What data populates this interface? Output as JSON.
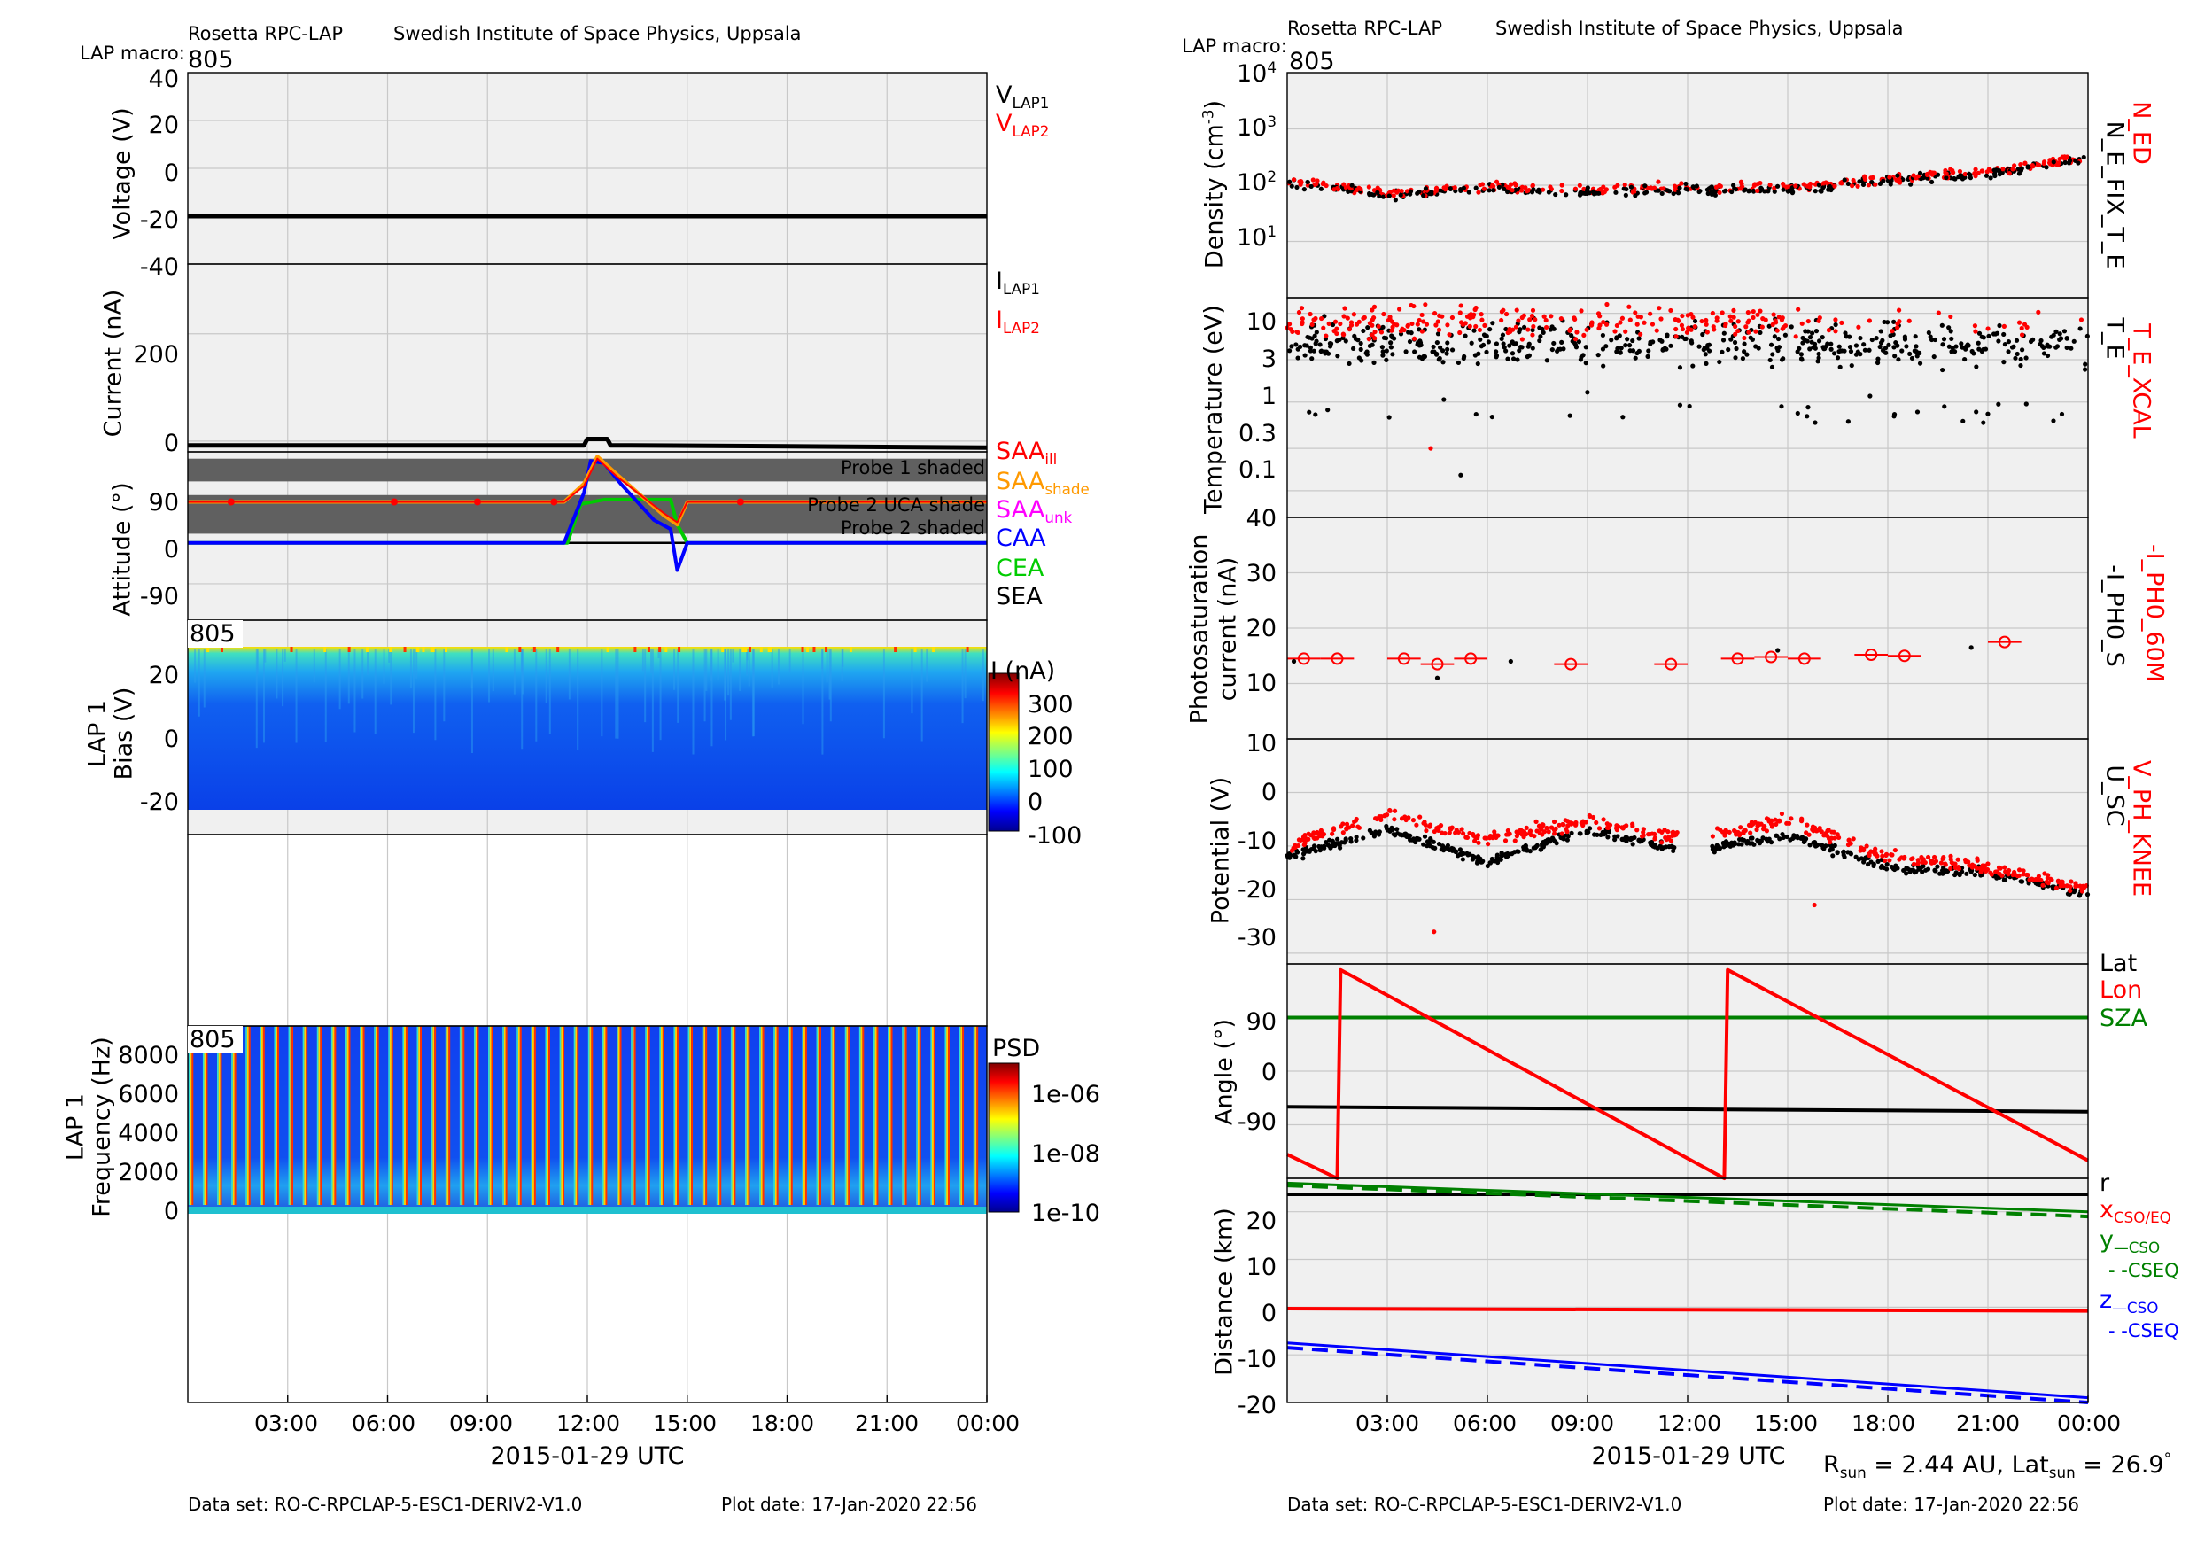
{
  "left": {
    "header": {
      "instrument": "Rosetta RPC-LAP",
      "institute": "Swedish Institute of Space Physics, Uppsala",
      "macro_label": "LAP macro:",
      "macro": "805"
    },
    "footer": {
      "dataset": "Data set: RO-C-RPCLAP-5-ESC1-DERIV2-V1.0",
      "plot_date": "Plot date: 17-Jan-2020 22:56"
    },
    "xlabel": "2015-01-29 UTC",
    "xticks": [
      "03:00",
      "06:00",
      "09:00",
      "12:00",
      "15:00",
      "18:00",
      "21:00",
      "00:00"
    ],
    "voltage": {
      "ylabel": "Voltage (V)",
      "yticks": [
        "40",
        "20",
        "0",
        "-20",
        "-40"
      ],
      "legend": [
        {
          "text": "V",
          "sub": "LAP1"
        },
        {
          "text": "V",
          "sub": "LAP2"
        }
      ]
    },
    "current": {
      "ylabel": "Current (nA)",
      "yticks": [
        "200",
        "0"
      ],
      "legend": [
        {
          "text": "I",
          "sub": "LAP1"
        },
        {
          "text": "I",
          "sub": "LAP2"
        }
      ]
    },
    "attitude": {
      "ylabel": "Attitude (°)",
      "yticks": [
        "90",
        "0",
        "-90"
      ],
      "bands": [
        "Probe 1 shaded",
        "Probe 2 UCA shade",
        "Probe 2 shaded"
      ],
      "legend": [
        {
          "text": "SAA",
          "sub": "ill"
        },
        {
          "text": "SAA",
          "sub": "shade"
        },
        {
          "text": "SAA",
          "sub": "unk"
        },
        {
          "text": "CAA",
          "sub": ""
        },
        {
          "text": "CEA",
          "sub": ""
        },
        {
          "text": "SEA",
          "sub": ""
        }
      ]
    },
    "bias": {
      "tag": "805",
      "ylabel1": "LAP 1",
      "ylabel2": "Bias (V)",
      "yticks": [
        "20",
        "0",
        "-20"
      ],
      "cbar_title": "I (nA)",
      "cbar_ticks": [
        "300",
        "200",
        "100",
        "0",
        "-100"
      ]
    },
    "freq": {
      "tag": "805",
      "ylabel1": "LAP 1",
      "ylabel2": "Frequency (Hz)",
      "yticks": [
        "8000",
        "6000",
        "4000",
        "2000",
        "0"
      ],
      "cbar_title": "PSD",
      "cbar_ticks": [
        "1e-06",
        "1e-08",
        "1e-10"
      ]
    }
  },
  "right": {
    "header": {
      "instrument": "Rosetta RPC-LAP",
      "institute": "Swedish Institute of Space Physics, Uppsala",
      "macro_label": "LAP macro:",
      "macro": "805"
    },
    "footer": {
      "dataset": "Data set: RO-C-RPCLAP-5-ESC1-DERIV2-V1.0",
      "plot_date": "Plot date: 17-Jan-2020 22:56"
    },
    "xlabel": "2015-01-29 UTC",
    "xticks": [
      "03:00",
      "06:00",
      "09:00",
      "12:00",
      "15:00",
      "18:00",
      "21:00",
      "00:00"
    ],
    "rsun": {
      "r_label": "R",
      "r_sub": "sun",
      "r_value": " = 2.44 AU, Lat",
      "lat_sub": "sun",
      "lat_value": " = 26.9",
      "deg": "°"
    },
    "density": {
      "ylabel": "Density (cm",
      "ylabel_sup": "-3",
      "ylabel_end": ")",
      "yticks": [
        {
          "b": "10",
          "e": "4"
        },
        {
          "b": "10",
          "e": "3"
        },
        {
          "b": "10",
          "e": "2"
        },
        {
          "b": "10",
          "e": "1"
        }
      ],
      "legend_red": "N_ED",
      "legend_black": "N_E_FIX_T_E"
    },
    "temperature": {
      "ylabel": "Temperature (eV)",
      "yticks": [
        "10",
        "3",
        "1",
        "0.3",
        "0.1"
      ],
      "legend_red": "T_E_XCAL",
      "legend_black": "T_E"
    },
    "photo": {
      "ylabel1": "Photosaturation",
      "ylabel2": "current (nA)",
      "yticks": [
        "40",
        "30",
        "20",
        "10"
      ],
      "legend_red": "-I_PH0_60M",
      "legend_black": "-I_PH0_S"
    },
    "potential": {
      "ylabel": "Potential (V)",
      "yticks": [
        "10",
        "0",
        "-10",
        "-20",
        "-30"
      ],
      "legend_red": "V_PH_KNEE",
      "legend_black": "U_SC"
    },
    "angle": {
      "ylabel": "Angle (°)",
      "yticks": [
        "90",
        "0",
        "-90"
      ],
      "legend": [
        "Lat",
        "Lon",
        "SZA"
      ]
    },
    "distance": {
      "ylabel": "Distance (km)",
      "yticks": [
        "20",
        "10",
        "0",
        "-10",
        "-20"
      ],
      "legend": {
        "r": "r",
        "x": "x",
        "x_sub": "CSO/EQ",
        "y": "y",
        "y_sub": "—CSO",
        "y2": "- -CSEQ",
        "z": "z",
        "z_sub": "—CSO",
        "z2": "- -CSEQ"
      }
    }
  },
  "colors": {
    "red": "#ff0000",
    "green": "#008000",
    "bright_green": "#00cc00",
    "blue": "#0000ff",
    "orange": "#ff9900",
    "magenta": "#ff00ff",
    "panel_bg": "#f0f0f0",
    "shade": "#606060"
  },
  "chart_data": [
    {
      "type": "line",
      "title": "Voltage",
      "ylabel": "Voltage (V)",
      "ylim": [
        -40,
        40
      ],
      "x_range_hours": [
        0,
        24
      ],
      "series": [
        {
          "name": "V_LAP1",
          "x": [
            0,
            24
          ],
          "values": [
            -20,
            -20
          ]
        }
      ]
    },
    {
      "type": "line",
      "ylabel": "Current (nA)",
      "ylim": [
        -20,
        330
      ],
      "x_range_hours": [
        0,
        24
      ],
      "series": [
        {
          "name": "I_LAP1",
          "x": [
            0,
            11.9,
            12,
            12.1,
            12.6,
            12.7,
            13.2,
            13.3,
            24
          ],
          "values": [
            -8,
            -8,
            4,
            4,
            4,
            -8,
            -8,
            -8,
            -12
          ]
        }
      ]
    },
    {
      "type": "line",
      "ylabel": "Attitude (°)",
      "ylim": [
        -170,
        200
      ],
      "x_range_hours": [
        0,
        24
      ],
      "series": [
        {
          "name": "SAA_shade",
          "x": [
            0,
            11.3,
            11.9,
            12.3,
            12.9,
            14.3,
            14.7,
            15.0,
            24
          ],
          "values": [
            90,
            90,
            130,
            190,
            150,
            60,
            40,
            90,
            90
          ]
        },
        {
          "name": "SAA_ill",
          "x": [
            0,
            11.3,
            11.9,
            12.3,
            12.9,
            14.3,
            14.7,
            15.0,
            24
          ],
          "values": [
            90,
            90,
            125,
            185,
            145,
            65,
            45,
            90,
            90
          ]
        },
        {
          "name": "CAA",
          "x": [
            0,
            11.3,
            11.9,
            12.1,
            12.5,
            13.0,
            14.0,
            14.5,
            14.7,
            15.0,
            24
          ],
          "values": [
            0,
            0,
            110,
            180,
            175,
            130,
            50,
            30,
            -60,
            0,
            0
          ]
        },
        {
          "name": "CEA",
          "x": [
            0,
            11.4,
            11.8,
            12.5,
            14.5,
            14.7,
            15.0,
            24
          ],
          "values": [
            0,
            0,
            85,
            95,
            95,
            40,
            0,
            0
          ]
        },
        {
          "name": "SEA",
          "x": [
            0,
            24
          ],
          "values": [
            0,
            0
          ]
        }
      ]
    },
    {
      "type": "heatmap",
      "ylabel": "Bias (V)",
      "ylim": [
        -22,
        28
      ],
      "zlabel": "I (nA)",
      "zlim": [
        -100,
        350
      ]
    },
    {
      "type": "heatmap",
      "ylabel": "Frequency (Hz)",
      "ylim": [
        0,
        9500
      ],
      "zlabel": "PSD",
      "zlim": [
        1e-10,
        1e-05
      ]
    },
    {
      "type": "scatter",
      "ylabel": "Density (cm-3)",
      "log_y": true,
      "ylim": [
        1,
        10000
      ],
      "x_range_hours": [
        0,
        24
      ],
      "series": [
        {
          "name": "N_E_FIX_T_E",
          "trend_x": [
            0,
            3,
            6,
            9,
            12,
            15,
            18,
            21,
            24
          ],
          "trend_y": [
            110,
            65,
            85,
            75,
            85,
            80,
            120,
            160,
            280
          ]
        },
        {
          "name": "N_ED",
          "trend_x": [
            0,
            3,
            6,
            9,
            12,
            15,
            18,
            21,
            24
          ],
          "trend_y": [
            120,
            70,
            95,
            80,
            95,
            90,
            130,
            170,
            300
          ]
        }
      ]
    },
    {
      "type": "scatter",
      "ylabel": "Temperature (eV)",
      "log_y": true,
      "ylim": [
        0.05,
        15
      ],
      "x_range_hours": [
        0,
        24
      ],
      "series": [
        {
          "name": "T_E",
          "typical": 4.5
        },
        {
          "name": "T_E_XCAL",
          "typical": 8
        }
      ]
    },
    {
      "type": "scatter",
      "ylabel": "Photosaturation current (nA)",
      "ylim": [
        0,
        40
      ],
      "x_range_hours": [
        0,
        24
      ],
      "series": [
        {
          "name": "-I_PH0_60M",
          "x": [
            0.5,
            1.5,
            3.5,
            4.5,
            5.5,
            8.5,
            11.5,
            13.5,
            14.5,
            15.5,
            17.5,
            18.5,
            21.5
          ],
          "values": [
            14.5,
            14.5,
            14.5,
            13.5,
            14.5,
            13.5,
            13.5,
            14.5,
            14.8,
            14.5,
            15.2,
            15.0,
            17.5
          ]
        }
      ]
    },
    {
      "type": "scatter",
      "ylabel": "Potential (V)",
      "ylim": [
        -32,
        10
      ],
      "x_range_hours": [
        0,
        24
      ],
      "series": [
        {
          "name": "U_SC",
          "trend_x": [
            0,
            3,
            6,
            9,
            12,
            15,
            18,
            21,
            24
          ],
          "trend_y": [
            -12,
            -7,
            -13,
            -7,
            -11,
            -8,
            -14,
            -15,
            -19
          ]
        },
        {
          "name": "V_PH_KNEE",
          "trend_x": [
            0,
            3,
            6,
            9,
            12,
            15,
            18,
            21,
            24
          ],
          "trend_y": [
            -10,
            -4,
            -9,
            -5,
            -9,
            -5,
            -12,
            -14,
            -18
          ]
        }
      ]
    },
    {
      "type": "line",
      "ylabel": "Angle (°)",
      "ylim": [
        -180,
        180
      ],
      "x_range_hours": [
        0,
        24
      ],
      "series": [
        {
          "name": "Lat",
          "x": [
            0,
            24
          ],
          "values": [
            -60,
            -68
          ]
        },
        {
          "name": "Lon",
          "x": [
            0,
            1.5,
            1.6,
            13.1,
            13.2,
            24
          ],
          "values": [
            -140,
            -180,
            170,
            -180,
            170,
            -150
          ]
        },
        {
          "name": "SZA",
          "x": [
            0,
            24
          ],
          "values": [
            90,
            90
          ]
        }
      ]
    },
    {
      "type": "line",
      "ylabel": "Distance (km)",
      "ylim": [
        -20,
        27
      ],
      "x_range_hours": [
        0,
        24
      ],
      "series": [
        {
          "name": "r",
          "x": [
            0,
            24
          ],
          "values": [
            29,
            29
          ]
        },
        {
          "name": "x_CSO/EQ",
          "x": [
            0,
            24
          ],
          "values": [
            -0.3,
            -0.8
          ]
        },
        {
          "name": "y_CSO",
          "x": [
            0,
            24
          ],
          "values": [
            26,
            20
          ]
        },
        {
          "name": "y_CSEQ",
          "x": [
            0,
            24
          ],
          "values": [
            25.5,
            19
          ]
        },
        {
          "name": "z_CSO",
          "x": [
            0,
            24
          ],
          "values": [
            -7.5,
            -19
          ]
        },
        {
          "name": "z_CSEQ",
          "x": [
            0,
            24
          ],
          "values": [
            -8.5,
            -20
          ]
        }
      ]
    }
  ]
}
